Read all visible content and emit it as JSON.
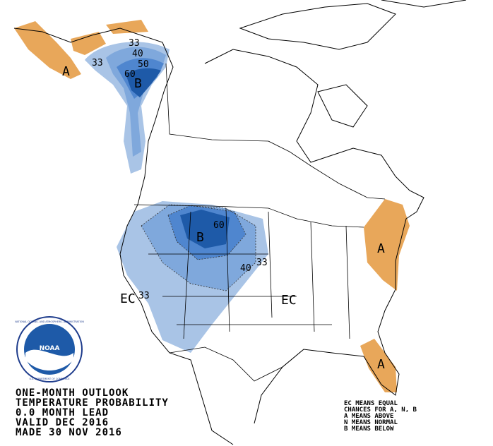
{
  "map": {
    "labels": [
      "33",
      "40",
      "50",
      "60",
      "B",
      "33",
      "A",
      "B",
      "60",
      "40",
      "33",
      "EC",
      "33",
      "EC",
      "A",
      "A"
    ]
  },
  "logo": {
    "text": "NOAA",
    "ring": "NATIONAL OCEANIC AND ATMOSPHERIC ADMINISTRATION",
    "ring_bottom": "U.S. DEPARTMENT OF COMMERCE"
  },
  "title_lines": [
    "ONE-MONTH OUTLOOK",
    "TEMPERATURE PROBABILITY",
    "0.0 MONTH LEAD",
    "VALID DEC 2016",
    "MADE 30 NOV 2016"
  ],
  "key_lines": [
    "EC MEANS EQUAL",
    "CHANCES FOR A, N, B",
    "A MEANS ABOVE",
    "N MEANS NORMAL",
    "B MEANS BELOW"
  ]
}
